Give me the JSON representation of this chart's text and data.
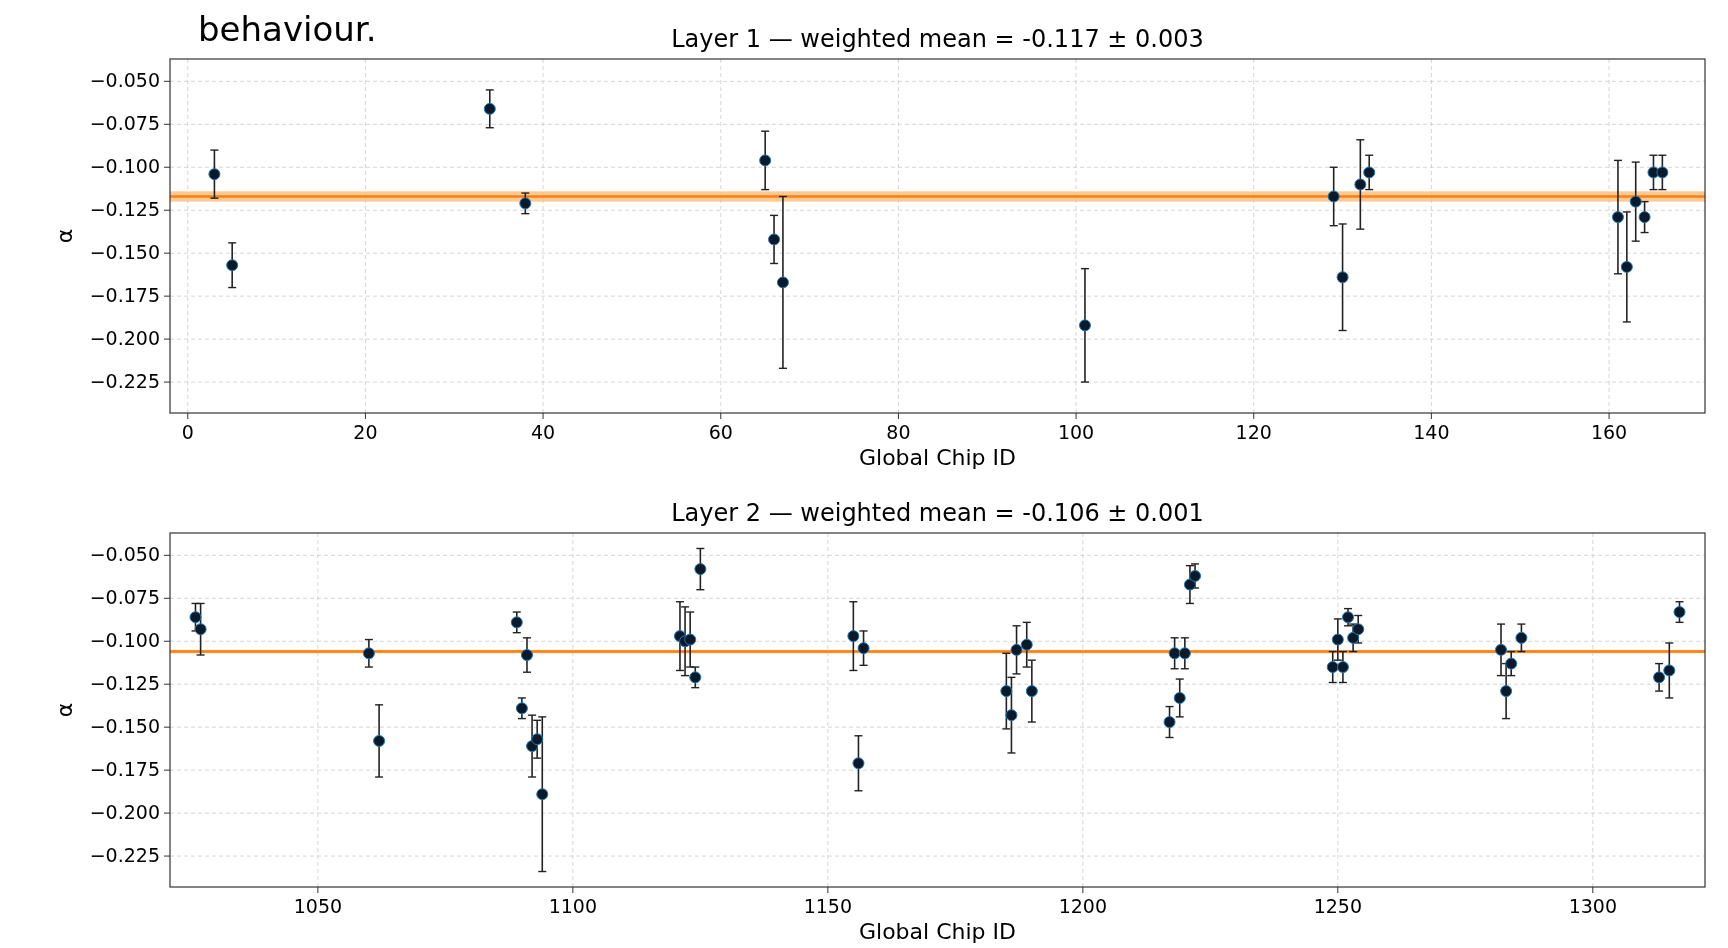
{
  "chart_data": [
    {
      "type": "scatter",
      "title": "Layer 1 — weighted mean = -0.117 ± 0.003",
      "xlabel": "Global Chip ID",
      "ylabel": "α",
      "annotations": [
        "behaviour."
      ],
      "xlim": [
        -2,
        170.8
      ],
      "xticks": [
        0,
        20,
        40,
        60,
        80,
        100,
        120,
        140,
        160
      ],
      "ylim": [
        -0.243,
        -0.037
      ],
      "yticks": [
        {
          "value": -0.05,
          "label": "−0.050"
        },
        {
          "value": -0.075,
          "label": "−0.075"
        },
        {
          "value": -0.1,
          "label": "−0.100"
        },
        {
          "value": -0.125,
          "label": "−0.125"
        },
        {
          "value": -0.15,
          "label": "−0.150"
        },
        {
          "value": -0.175,
          "label": "−0.175"
        },
        {
          "value": -0.2,
          "label": "−0.200"
        },
        {
          "value": -0.225,
          "label": "−0.225"
        }
      ],
      "grid": true,
      "marker": "circle",
      "ref_lines": [
        {
          "axis": "y",
          "value": -0.117,
          "color": "#ff7f0e"
        }
      ],
      "bands": [
        {
          "axis": "y",
          "from": -0.12,
          "to": -0.114,
          "color": "#ffbb78"
        }
      ],
      "series": [
        {
          "color": "#0a1a2a",
          "x": [
            3,
            5,
            34,
            38,
            65,
            66,
            67,
            101,
            129,
            130,
            132,
            133,
            161,
            162,
            163,
            164,
            165,
            166
          ],
          "values": [
            -0.104,
            -0.157,
            -0.066,
            -0.121,
            -0.096,
            -0.142,
            -0.167,
            -0.192,
            -0.117,
            -0.164,
            -0.11,
            -0.103,
            -0.129,
            -0.158,
            -0.12,
            -0.129,
            -0.103,
            -0.103
          ],
          "errors": [
            0.014,
            0.013,
            0.011,
            0.006,
            0.017,
            0.014,
            0.05,
            0.033,
            0.017,
            0.031,
            0.026,
            0.01,
            0.033,
            0.032,
            0.023,
            0.009,
            0.01,
            0.01
          ]
        }
      ]
    },
    {
      "type": "scatter",
      "title": "Layer 2 — weighted mean = -0.106 ± 0.001",
      "xlabel": "Global Chip ID",
      "ylabel": "α",
      "xlim": [
        1021,
        1322
      ],
      "xticks": [
        1050,
        1100,
        1150,
        1200,
        1250,
        1300
      ],
      "ylim": [
        -0.243,
        -0.037
      ],
      "yticks": [
        {
          "value": -0.05,
          "label": "−0.050"
        },
        {
          "value": -0.075,
          "label": "−0.075"
        },
        {
          "value": -0.1,
          "label": "−0.100"
        },
        {
          "value": -0.125,
          "label": "−0.125"
        },
        {
          "value": -0.15,
          "label": "−0.150"
        },
        {
          "value": -0.175,
          "label": "−0.175"
        },
        {
          "value": -0.2,
          "label": "−0.200"
        },
        {
          "value": -0.225,
          "label": "−0.225"
        }
      ],
      "grid": true,
      "marker": "circle",
      "ref_lines": [
        {
          "axis": "y",
          "value": -0.106,
          "color": "#ff7f0e"
        }
      ],
      "bands": [
        {
          "axis": "y",
          "from": -0.107,
          "to": -0.105,
          "color": "#ffbb78"
        }
      ],
      "series": [
        {
          "color": "#0a1a2a",
          "x": [
            1026,
            1027,
            1060,
            1062,
            1089,
            1090,
            1091,
            1092,
            1093,
            1094,
            1121,
            1122,
            1123,
            1124,
            1125,
            1155,
            1156,
            1157,
            1185,
            1186,
            1187,
            1189,
            1190,
            1217,
            1218,
            1219,
            1220,
            1221,
            1222,
            1249,
            1250,
            1251,
            1252,
            1253,
            1254,
            1282,
            1283,
            1284,
            1286,
            1313,
            1315,
            1317
          ],
          "values": [
            -0.086,
            -0.093,
            -0.107,
            -0.158,
            -0.089,
            -0.139,
            -0.108,
            -0.161,
            -0.157,
            -0.189,
            -0.097,
            -0.1,
            -0.099,
            -0.121,
            -0.058,
            -0.097,
            -0.171,
            -0.104,
            -0.129,
            -0.143,
            -0.105,
            -0.102,
            -0.129,
            -0.147,
            -0.107,
            -0.133,
            -0.107,
            -0.067,
            -0.062,
            -0.115,
            -0.099,
            -0.115,
            -0.086,
            -0.098,
            -0.093,
            -0.105,
            -0.129,
            -0.113,
            -0.098,
            -0.121,
            -0.117,
            -0.083
          ],
          "errors": [
            0.008,
            0.015,
            0.008,
            0.021,
            0.006,
            0.006,
            0.01,
            0.018,
            0.011,
            0.045,
            0.02,
            0.02,
            0.016,
            0.006,
            0.012,
            0.02,
            0.016,
            0.01,
            0.022,
            0.022,
            0.014,
            0.013,
            0.018,
            0.009,
            0.009,
            0.011,
            0.009,
            0.011,
            0.007,
            0.009,
            0.012,
            0.009,
            0.005,
            0.008,
            0.008,
            0.015,
            0.016,
            0.007,
            0.008,
            0.008,
            0.016,
            0.006
          ]
        }
      ]
    }
  ]
}
